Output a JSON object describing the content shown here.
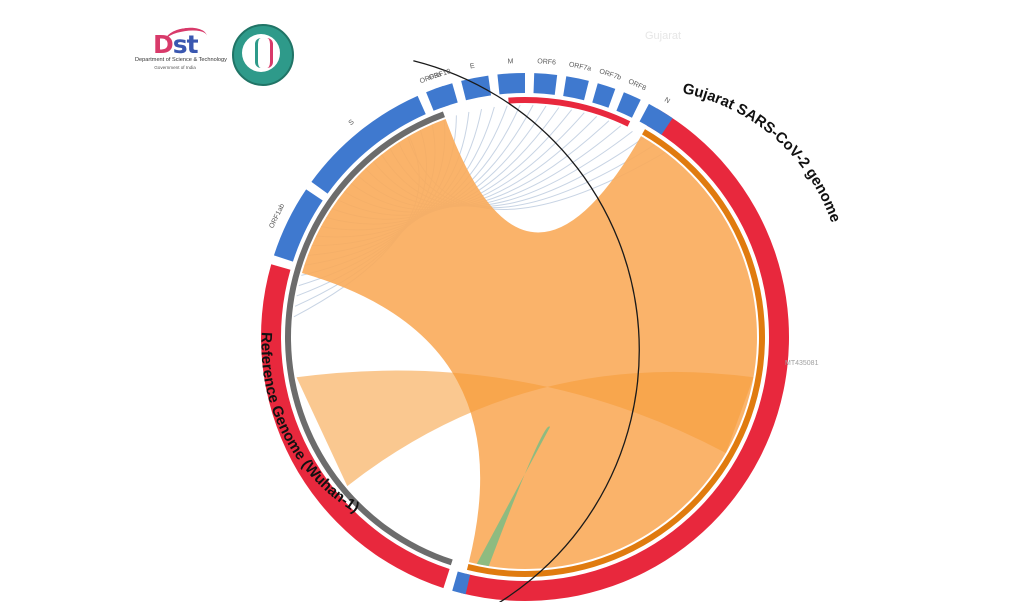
{
  "logos": {
    "dst": {
      "name": "DST",
      "tagline": "Department of Science & Technology",
      "subtagline": "Government of India"
    },
    "gbrc": {
      "name": "GBRC"
    }
  },
  "watermark": "Gujarat",
  "genomes": {
    "query": {
      "label": "Gujarat SARS-CoV-2 genome",
      "sequence_id": "MT435081",
      "color": "#e8283d"
    },
    "reference": {
      "label": "Reference Genome (Wuhan-1)",
      "color": "#e8283d"
    }
  },
  "genes": [
    "ORF1ab",
    "S",
    "ORF3a",
    "E",
    "M",
    "ORF6",
    "ORF7a",
    "ORF7b",
    "ORF8",
    "N",
    "ORF10"
  ],
  "colors": {
    "gene_band": "#3f79cf",
    "inner_ring_reference": "#6c6c6c",
    "inner_ring_query": "#e07b0f",
    "alignment_ribbon": "#f9ab5a",
    "alignment_overlap": "#f59a34",
    "gene_links": "#c8d4e4",
    "green_link": "#5fbf8a"
  }
}
